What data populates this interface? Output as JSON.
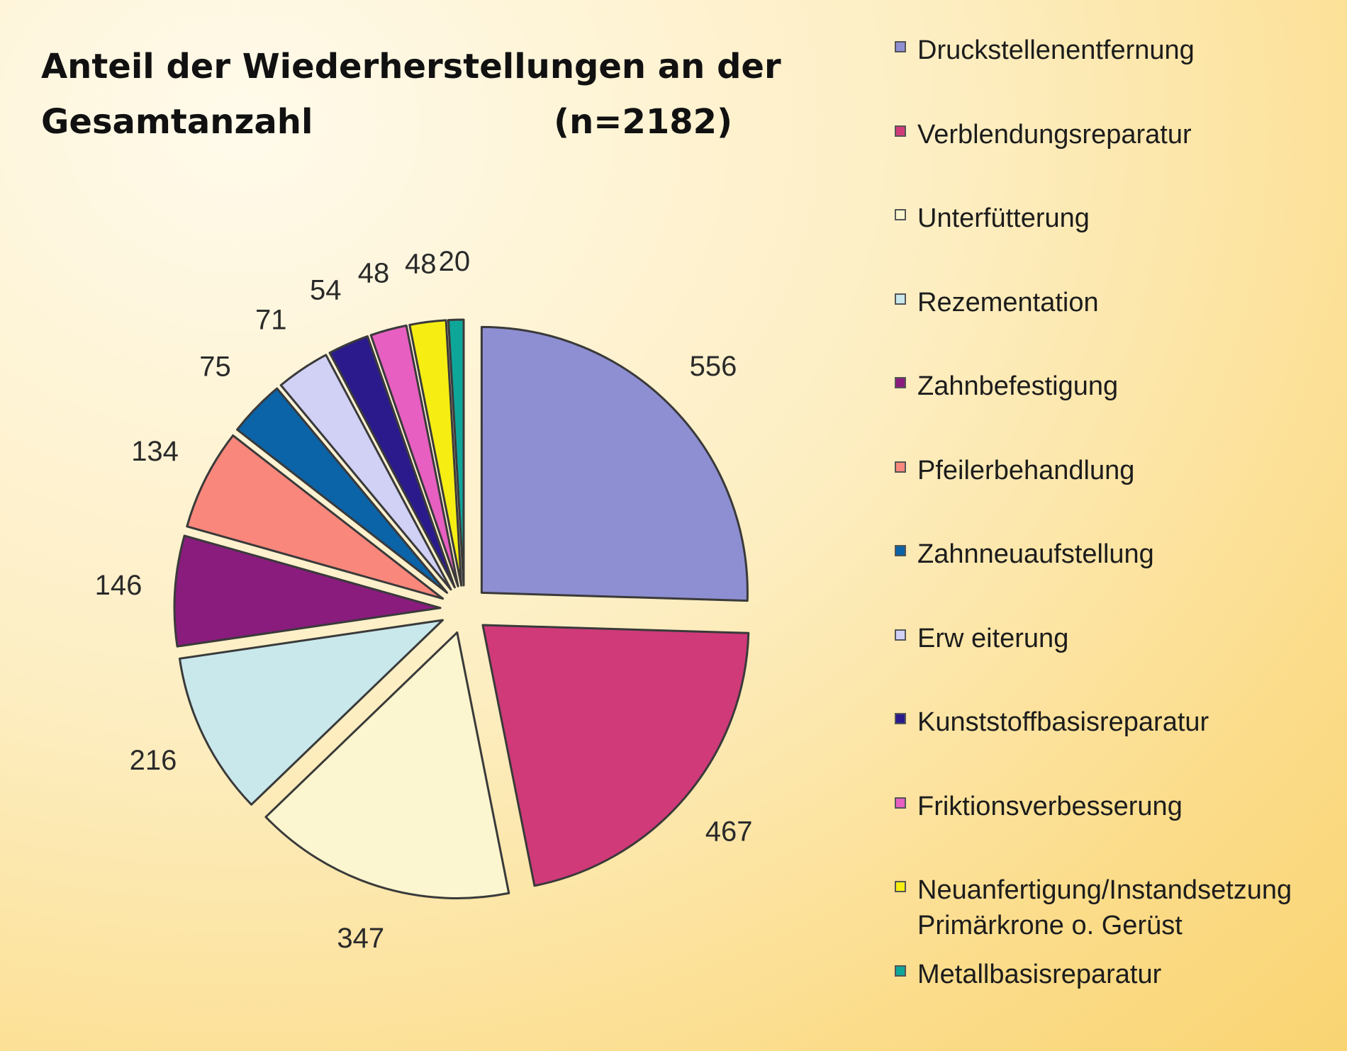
{
  "chart_data": {
    "type": "pie",
    "title": "Anteil der Wiederherstellungen an der Gesamtanzahl",
    "title_line1": "Anteil der Wiederherstellungen an der",
    "title_line2": "Gesamtanzahl",
    "title_n": "(n=2182)",
    "legend_placement": "right",
    "exploded": true,
    "slices": [
      {
        "label": "Druckstellenentfernung",
        "value": 556,
        "color": "#8e8fd2"
      },
      {
        "label": "Verblendungsreparatur",
        "value": 467,
        "color": "#d03a79"
      },
      {
        "label": "Unterfütterung",
        "value": 347,
        "color": "#fbf6cf"
      },
      {
        "label": "Rezementation",
        "value": 216,
        "color": "#c9e8ec"
      },
      {
        "label": "Zahnbefestigung",
        "value": 146,
        "color": "#8a1c7e"
      },
      {
        "label": "Pfeilerbehandlung",
        "value": 134,
        "color": "#f9877c"
      },
      {
        "label": "Zahnneuaufstellung",
        "value": 75,
        "color": "#0b63a8"
      },
      {
        "label": "Erweiterung",
        "value": 71,
        "color": "#d1d0f5"
      },
      {
        "label": "Kunststoffbasisreparatur",
        "value": 54,
        "color": "#2b1a8c"
      },
      {
        "label": "Friktionsverbesserung",
        "value": 48,
        "color": "#e75fc0"
      },
      {
        "label": "Neuanfertigung/Instandsetzung Primärkrone o. Gerüst",
        "value": 48,
        "color": "#f6ee12"
      },
      {
        "label": "Metallbasisreparatur",
        "value": 20,
        "color": "#0fa69a"
      }
    ]
  },
  "legend": {
    "items": [
      {
        "lines": [
          "Druckstellenentfernung"
        ],
        "color": "#8e8fd2"
      },
      {
        "lines": [
          "Verblendungsreparatur"
        ],
        "color": "#d03a79"
      },
      {
        "lines": [
          "Unterfütterung"
        ],
        "color": "#fbf6cf"
      },
      {
        "lines": [
          "Rezementation"
        ],
        "color": "#c9e8ec"
      },
      {
        "lines": [
          "Zahnbefestigung"
        ],
        "color": "#8a1c7e"
      },
      {
        "lines": [
          "Pfeilerbehandlung"
        ],
        "color": "#f9877c"
      },
      {
        "lines": [
          "Zahnneuaufstellung"
        ],
        "color": "#0b63a8"
      },
      {
        "lines": [
          "Erw eiterung"
        ],
        "color": "#d1d0f5"
      },
      {
        "lines": [
          "Kunststoffbasisreparatur"
        ],
        "color": "#2b1a8c"
      },
      {
        "lines": [
          "Friktionsverbesserung"
        ],
        "color": "#e75fc0"
      },
      {
        "lines": [
          "Neuanfertigung/Instandsetzung",
          "Primärkrone o. Gerüst"
        ],
        "color": "#f6ee12"
      },
      {
        "lines": [
          "Metallbasisreparatur"
        ],
        "color": "#0fa69a"
      }
    ]
  }
}
